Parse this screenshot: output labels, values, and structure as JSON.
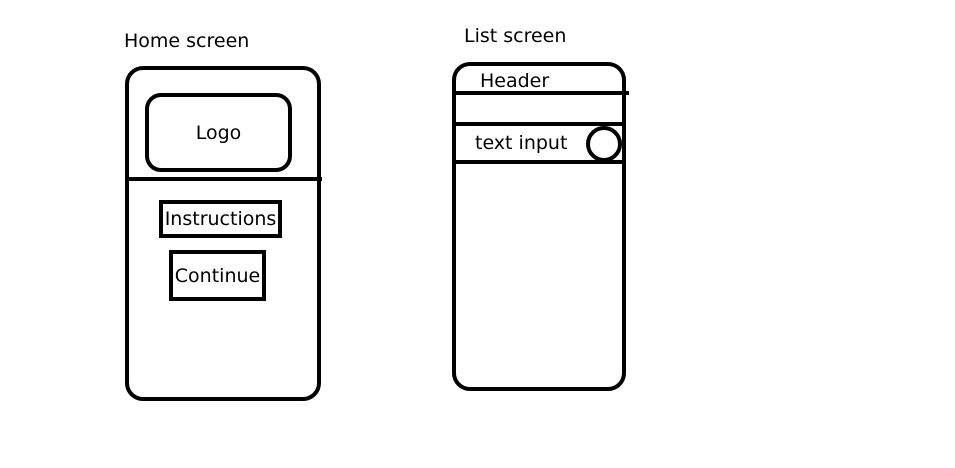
{
  "home_screen": {
    "title": "Home screen",
    "logo_label": "Logo",
    "instructions_label": "Instructions",
    "continue_label": "Continue"
  },
  "list_screen": {
    "title": "List screen",
    "header_label": "Header",
    "text_input_label": "text input",
    "action_icon": "circle-icon"
  }
}
